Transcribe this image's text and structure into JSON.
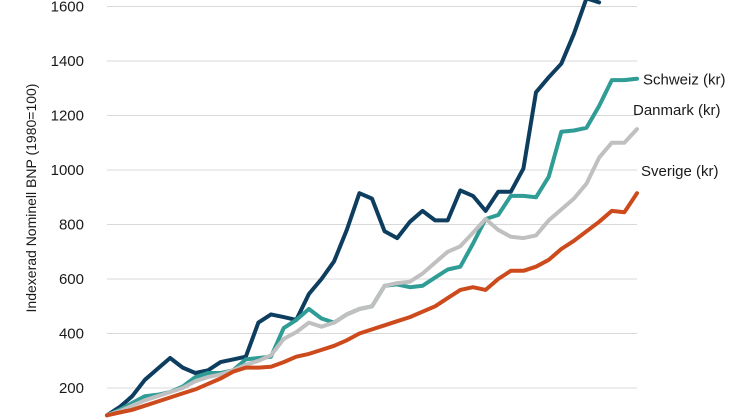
{
  "chart_data": {
    "type": "line",
    "ylabel": "Indexerad Nominell BNP (1980=100)",
    "ylim": [
      100,
      1660
    ],
    "yticks": [
      200,
      400,
      600,
      800,
      1000,
      1200,
      1400,
      1600
    ],
    "grid": "horizontal",
    "legend": "inline labels at right end of lines",
    "series": [
      {
        "name": "",
        "color": "#0d3d5f",
        "values": [
          100,
          130,
          170,
          230,
          270,
          310,
          275,
          255,
          265,
          295,
          305,
          315,
          440,
          470,
          460,
          450,
          545,
          600,
          665,
          780,
          915,
          895,
          775,
          750,
          810,
          850,
          815,
          815,
          925,
          905,
          850,
          920,
          920,
          1005,
          1285,
          1340,
          1390,
          1500,
          1630,
          1615
        ]
      },
      {
        "name": "Schweiz (kr)",
        "color": "#2f9c95",
        "values": [
          100,
          120,
          145,
          170,
          175,
          185,
          205,
          240,
          255,
          255,
          265,
          305,
          310,
          315,
          420,
          450,
          490,
          455,
          440,
          470,
          490,
          500,
          575,
          580,
          570,
          575,
          605,
          635,
          645,
          730,
          820,
          835,
          905,
          905,
          900,
          975,
          1140,
          1145,
          1155,
          1235,
          1330,
          1330,
          1335
        ]
      },
      {
        "name": "Danmark (kr)",
        "color": "#c0c0c0",
        "values": [
          100,
          115,
          135,
          155,
          170,
          185,
          200,
          225,
          240,
          250,
          265,
          285,
          300,
          320,
          380,
          405,
          440,
          425,
          440,
          470,
          490,
          500,
          575,
          585,
          590,
          620,
          660,
          700,
          720,
          770,
          820,
          780,
          755,
          750,
          760,
          815,
          855,
          895,
          950,
          1045,
          1100,
          1100,
          1150
        ]
      },
      {
        "name": "Sverige (kr)",
        "color": "#cc4a1c",
        "values": [
          100,
          110,
          120,
          135,
          150,
          165,
          180,
          195,
          215,
          235,
          260,
          275,
          275,
          278,
          295,
          315,
          325,
          340,
          355,
          375,
          400,
          415,
          430,
          445,
          460,
          480,
          500,
          530,
          560,
          570,
          560,
          600,
          630,
          630,
          645,
          670,
          710,
          740,
          775,
          810,
          850,
          845,
          915
        ]
      }
    ]
  }
}
